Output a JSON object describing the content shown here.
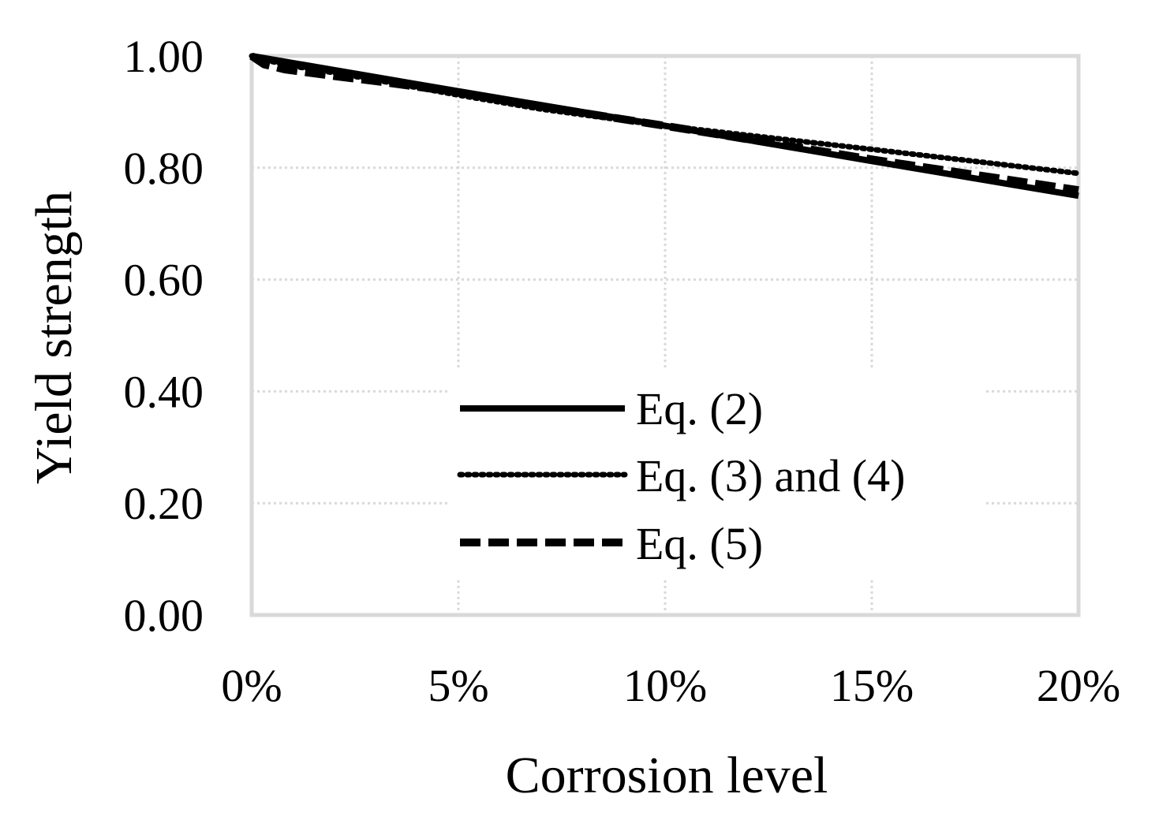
{
  "chart_data": {
    "type": "line",
    "title": "",
    "xlabel": "Corrosion level",
    "ylabel": "Yield strength",
    "xlim": [
      0,
      0.2
    ],
    "ylim": [
      0,
      1
    ],
    "xticks": [
      0,
      0.05,
      0.1,
      0.15,
      0.2
    ],
    "yticks": [
      0,
      0.2,
      0.4,
      0.6,
      0.8,
      1.0
    ],
    "xtick_labels": [
      "0%",
      "5%",
      "10%",
      "15%",
      "20%"
    ],
    "ytick_labels": [
      "0.00",
      "0.20",
      "0.40",
      "0.60",
      "0.80",
      "1.00"
    ],
    "grid": true,
    "legend_position": "center-bottom",
    "series": [
      {
        "name": "Eq. (2)",
        "style": "solid",
        "x": [
          0,
          0.05,
          0.1,
          0.15,
          0.2
        ],
        "y": [
          1.0,
          0.937,
          0.875,
          0.812,
          0.75
        ]
      },
      {
        "name": "Eq. (3) and (4)",
        "style": "dotted",
        "x": [
          0,
          0.005,
          0.01,
          0.02,
          0.03,
          0.05,
          0.07,
          0.1,
          0.15,
          0.2
        ],
        "y": [
          1.0,
          0.99,
          0.982,
          0.97,
          0.957,
          0.93,
          0.905,
          0.875,
          0.833,
          0.79
        ],
        "note": "approximate"
      },
      {
        "name": "Eq. (5)",
        "style": "dashed",
        "x": [
          0,
          0.003,
          0.008,
          0.02,
          0.03,
          0.05,
          0.07,
          0.1,
          0.15,
          0.2
        ],
        "y": [
          1.0,
          0.985,
          0.976,
          0.964,
          0.955,
          0.935,
          0.91,
          0.875,
          0.815,
          0.76
        ],
        "note": "approximate"
      }
    ],
    "colors": {
      "series": "#000000",
      "grid": "#d9d9d9",
      "axis_frame": "#d9d9d9"
    }
  }
}
